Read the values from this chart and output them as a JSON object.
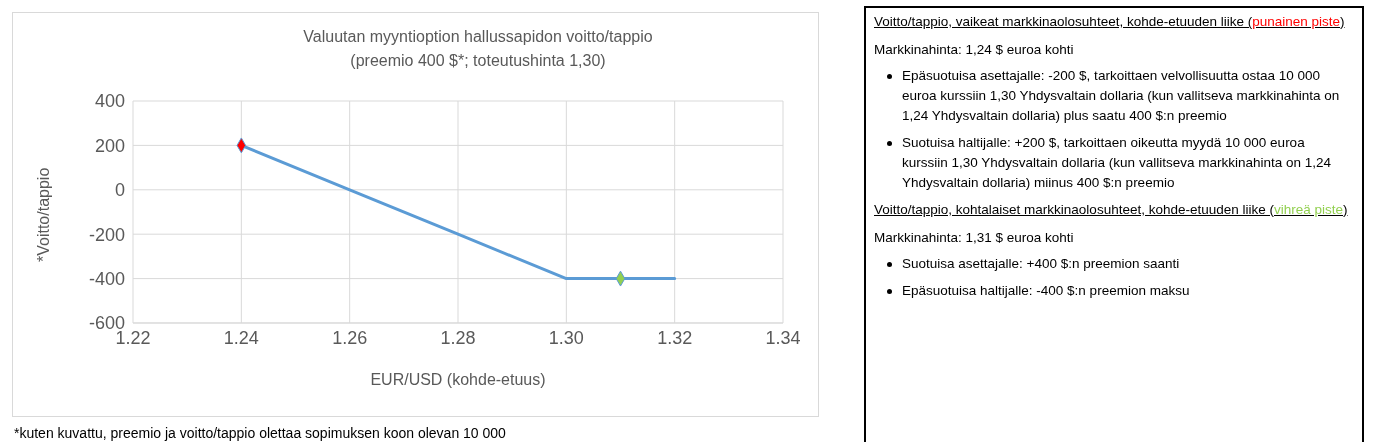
{
  "chart_data": {
    "type": "line",
    "title": "Valuutan myyntioption hallussapidon voitto/tappio",
    "subtitle": "(preemio 400 $*; toteutushinta 1,30)",
    "xlabel": "EUR/USD (kohde-etuus)",
    "ylabel": "*Voitto/tappio",
    "x": [
      1.24,
      1.26,
      1.28,
      1.3,
      1.32
    ],
    "series": [
      {
        "color": "#5b9bd5",
        "values": [
          200,
          0,
          -200,
          -400,
          -400
        ]
      },
      {
        "type": "scatter",
        "marker": "diamond",
        "color": "#ff0000",
        "x": [
          1.24
        ],
        "values": [
          200
        ]
      },
      {
        "type": "scatter",
        "marker": "diamond",
        "color": "#92d050",
        "x": [
          1.31
        ],
        "values": [
          -400
        ]
      }
    ],
    "xlim": [
      1.22,
      1.34
    ],
    "xticks": [
      {
        "value": 1.22,
        "label": "1.22"
      },
      {
        "value": 1.24,
        "label": "1.24"
      },
      {
        "value": 1.26,
        "label": "1.26"
      },
      {
        "value": 1.28,
        "label": "1.28"
      },
      {
        "value": 1.3,
        "label": "1.30"
      },
      {
        "value": 1.32,
        "label": "1.32"
      },
      {
        "value": 1.34,
        "label": "1.34"
      }
    ],
    "ylim": [
      -600,
      400
    ],
    "yticks": [
      -600,
      -400,
      -200,
      0,
      200,
      400
    ],
    "grid": true,
    "annotations": [
      "*kuten kuvattu, preemio ja voitto/tappio olettaa sopimuksen koon olevan 10 000",
      "Voitto/tappio, vaikeat markkinaolosuhteet, kohde-etuuden liike (punainen piste)",
      "Markkinahinta: 1,24 $ euroa kohti",
      "Epäsuotuisa asettajalle: -200 $, tarkoittaen velvollisuutta ostaa 10 000 euroa kurssiin 1,30 Yhdysvaltain dollaria (kun vallitseva markkinahinta on 1,24 Yhdysvaltain dollaria) plus saatu 400 $:n preemio",
      "Suotuisa haltijalle: +200 $, tarkoittaen oikeutta myydä 10 000 euroa kurssiin 1,30 Yhdysvaltain dollaria (kun vallitseva markkinahinta on 1,24 Yhdysvaltain dollaria) miinus 400 $:n preemio",
      "Voitto/tappio, kohtalaiset markkinaolosuhteet, kohde-etuuden liike (vihreä piste)",
      "Markkinahinta: 1,31 $ euroa kohti",
      "Suotuisa asettajalle: +400 $:n preemion saanti",
      "Epäsuotuisa haltijalle: -400 $:n preemion maksu"
    ]
  }
}
